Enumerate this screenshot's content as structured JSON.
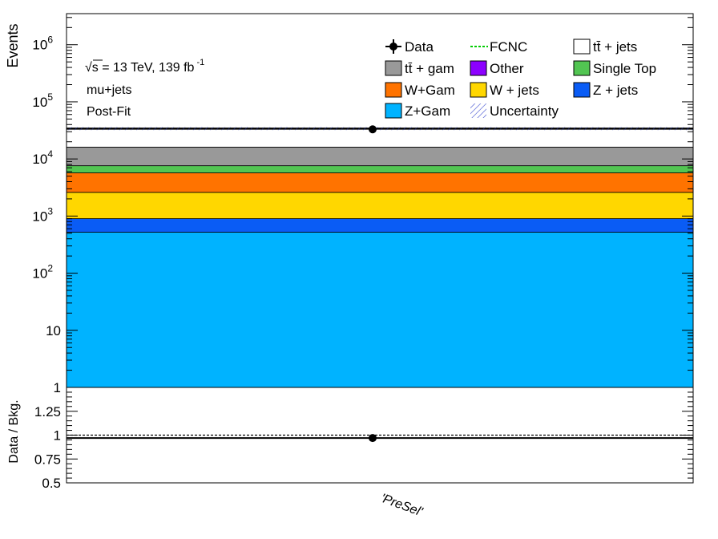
{
  "chart_data": [
    {
      "type": "bar",
      "subtype": "stacked-histogram",
      "ylabel": "Events",
      "yscale": "log",
      "ylim": [
        1,
        3500000
      ],
      "y_ticks": [
        {
          "value": 1,
          "label": "1"
        },
        {
          "value": 10,
          "label": "10"
        },
        {
          "value": 100,
          "label": "10",
          "exp": "2"
        },
        {
          "value": 1000,
          "label": "10",
          "exp": "3"
        },
        {
          "value": 10000,
          "label": "10",
          "exp": "4"
        },
        {
          "value": 100000,
          "label": "10",
          "exp": "5"
        },
        {
          "value": 1000000,
          "label": "10",
          "exp": "6"
        }
      ],
      "categories": [
        "'PreSel'"
      ],
      "annotations": {
        "energy_prefix": "√s = 13 TeV, 139 fb",
        "energy_exp": "-1",
        "channel": "mu+jets",
        "fit_status": "Post-Fit"
      },
      "series": [
        {
          "name": "Z+Gam",
          "color": "#00b3ff",
          "values": [
            520
          ]
        },
        {
          "name": "Z + jets",
          "color": "#0a5cf5",
          "values": [
            380
          ]
        },
        {
          "name": "W + jets",
          "color": "#ffd700",
          "values": [
            1700
          ]
        },
        {
          "name": "W+Gam",
          "color": "#ff7300",
          "values": [
            3100
          ]
        },
        {
          "name": "Single Top",
          "color": "#52c552",
          "values": [
            1900
          ]
        },
        {
          "name": "Other",
          "color": "#8c00ff",
          "values": [
            10
          ]
        },
        {
          "name": "tt̄ +  gam",
          "color": "#999999",
          "values": [
            8500
          ]
        },
        {
          "name": "tt̄ + jets",
          "color": "#ffffff",
          "values": [
            18000
          ]
        }
      ],
      "total_background": [
        34000
      ],
      "data": {
        "name": "Data",
        "values": [
          33000
        ]
      },
      "fcnc": {
        "name": "FCNC",
        "color": "#00cc00"
      },
      "uncertainty": {
        "name": "Uncertainty",
        "color": "#3344cc"
      }
    },
    {
      "type": "scatter",
      "subtype": "ratio",
      "ylabel": "Data / Bkg.",
      "xlabel": "'PreSel'",
      "ylim": [
        0.5,
        1.5
      ],
      "y_ticks": [
        {
          "value": 0.5,
          "label": "0.5"
        },
        {
          "value": 0.75,
          "label": "0.75"
        },
        {
          "value": 1,
          "label": "1"
        },
        {
          "value": 1.25,
          "label": "1.25"
        }
      ],
      "reference_line": 1.0,
      "ratio": [
        0.97
      ]
    }
  ],
  "legend": {
    "columns": [
      [
        {
          "label": "Data",
          "marker": "data"
        },
        {
          "label": "tt̄ +  gam",
          "marker": "box",
          "color": "#999999"
        },
        {
          "label": "W+Gam",
          "marker": "box",
          "color": "#ff7300"
        },
        {
          "label": "Z+Gam",
          "marker": "box",
          "color": "#00b3ff"
        }
      ],
      [
        {
          "label": "FCNC",
          "marker": "dashed",
          "color": "#00cc00"
        },
        {
          "label": "Other",
          "marker": "box",
          "color": "#8c00ff"
        },
        {
          "label": "W + jets",
          "marker": "box",
          "color": "#ffd700"
        },
        {
          "label": "Uncertainty",
          "marker": "hatch",
          "color": "#3344cc"
        }
      ],
      [
        {
          "label": "tt̄ + jets",
          "marker": "box",
          "color": "#ffffff"
        },
        {
          "label": "Single Top",
          "marker": "box",
          "color": "#52c552"
        },
        {
          "label": "Z + jets",
          "marker": "box",
          "color": "#0a5cf5"
        }
      ]
    ]
  }
}
